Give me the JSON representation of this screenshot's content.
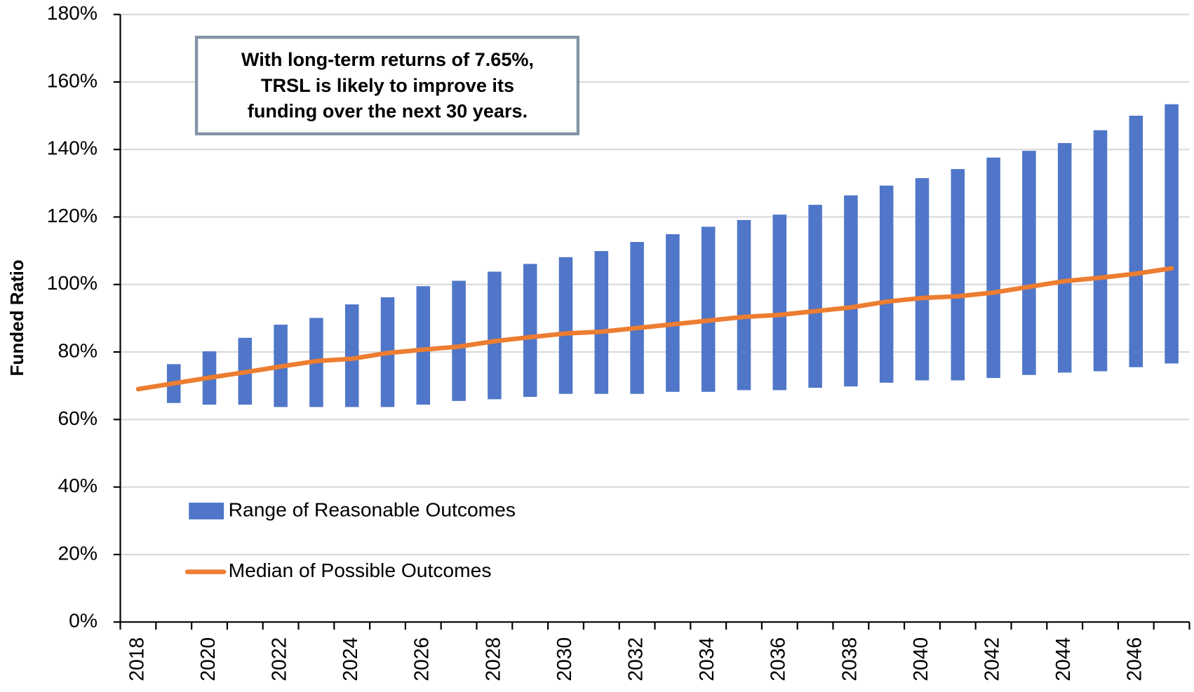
{
  "chart_data": {
    "type": "range-bar-line",
    "y_axis_label": "Funded Ratio",
    "annotation": [
      "With long-term returns of 7.65%,",
      "TRSL is likely to improve its",
      "funding over the next 30 years."
    ],
    "categories": [
      "2018",
      null,
      "2020",
      null,
      "2022",
      null,
      "2024",
      null,
      "2026",
      null,
      "2028",
      null,
      "2030",
      null,
      "2032",
      null,
      "2034",
      null,
      "2036",
      null,
      "2038",
      null,
      "2040",
      null,
      "2042",
      null,
      "2044",
      null,
      "2046",
      null
    ],
    "series": [
      {
        "name": "Range of Reasonable Outcomes",
        "color": "#4f76c8",
        "low": [
          null,
          64.9,
          64.4,
          64.4,
          63.7,
          63.7,
          63.7,
          63.7,
          64.4,
          65.5,
          66,
          66.7,
          67.6,
          67.6,
          67.6,
          68.2,
          68.2,
          68.7,
          68.7,
          69.4,
          69.8,
          70.9,
          71.6,
          71.6,
          72.3,
          73.2,
          73.9,
          74.3,
          75.5,
          76.6
        ],
        "high": [
          null,
          76.4,
          80.2,
          84.2,
          88.1,
          90.1,
          94.1,
          96.2,
          99.5,
          101.1,
          103.8,
          106.1,
          108.1,
          109.9,
          112.6,
          114.9,
          117.1,
          119.1,
          120.7,
          123.6,
          126.4,
          129.3,
          131.5,
          134.2,
          137.6,
          139.6,
          141.9,
          145.7,
          150,
          153.4
        ]
      },
      {
        "name": "Median of Possible Outcomes",
        "color": "#ed7d31",
        "values": [
          69,
          70.7,
          72.4,
          74,
          75.7,
          77.3,
          78,
          79.7,
          80.7,
          81.6,
          83.2,
          84.4,
          85.5,
          86,
          87.1,
          88.2,
          89.3,
          90.4,
          91,
          92.1,
          93.2,
          94.9,
          96,
          96.5,
          97.6,
          99.3,
          101,
          102,
          103.2,
          104.8
        ]
      }
    ],
    "ylim": [
      0,
      180
    ],
    "yticks": [
      {
        "value": 0,
        "label": "0%"
      },
      {
        "value": 20,
        "label": "20%"
      },
      {
        "value": 40,
        "label": "40%"
      },
      {
        "value": 60,
        "label": "60%"
      },
      {
        "value": 80,
        "label": "80%"
      },
      {
        "value": 100,
        "label": "100%"
      },
      {
        "value": 120,
        "label": "120%"
      },
      {
        "value": 140,
        "label": "140%"
      },
      {
        "value": 160,
        "label": "160%"
      },
      {
        "value": 180,
        "label": "180%"
      }
    ],
    "grid": true
  }
}
